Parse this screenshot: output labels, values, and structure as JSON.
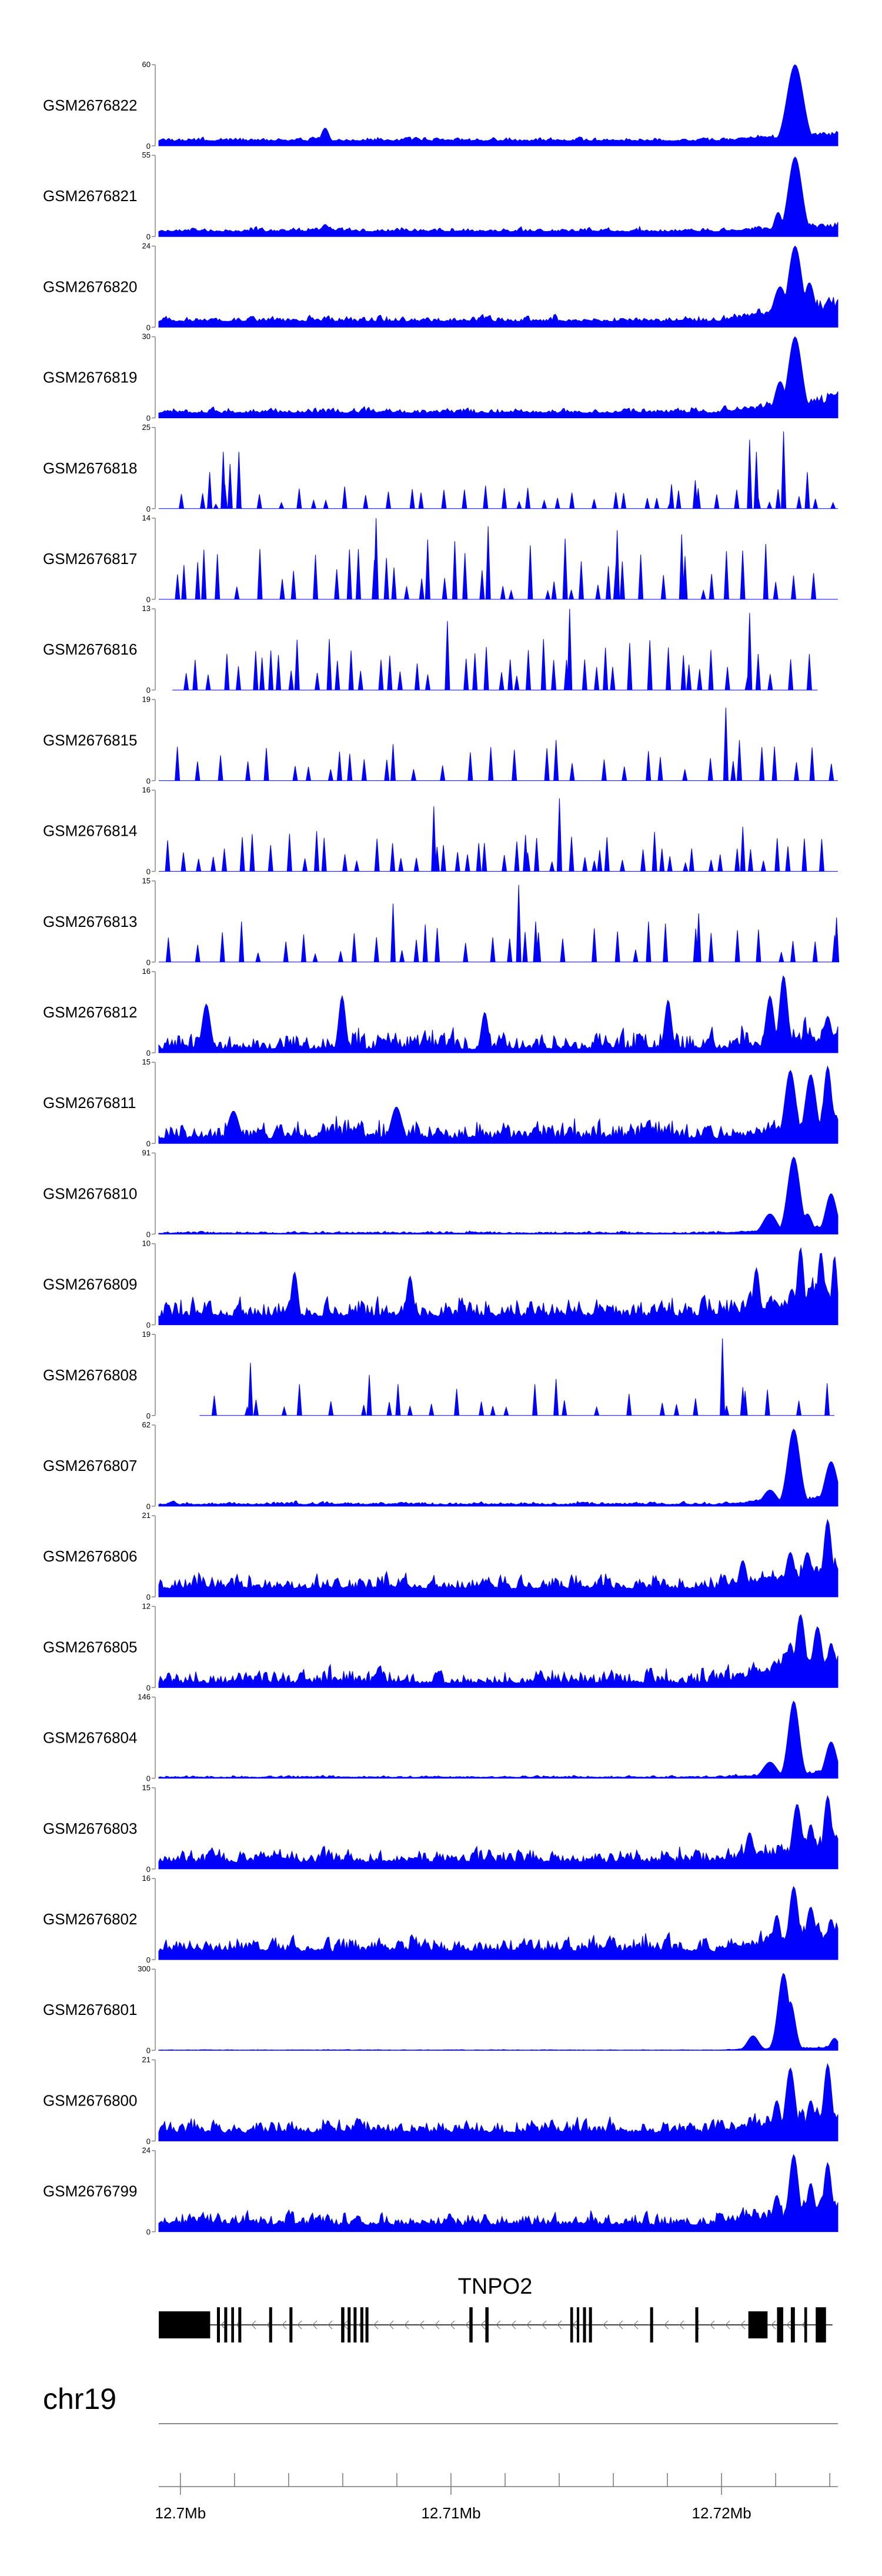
{
  "chart_data": {
    "type": "area",
    "title": "",
    "chromosome": "chr19",
    "x_range_mb": [
      12.6992,
      12.7243
    ],
    "axis_ticks_mb": [
      12.7,
      12.71,
      12.72
    ],
    "axis_tick_labels": [
      "12.7Mb",
      "12.71Mb",
      "12.72Mb"
    ],
    "track_color": "#0000FF",
    "tracks": [
      {
        "name": "GSM2676822",
        "ymax": 60,
        "ymax_label": "60",
        "ymin_label": "0",
        "profile": "dense",
        "seed": 1,
        "baseline": 0.06,
        "noise": 0.07,
        "ramp": 0.12,
        "peaks": [
          [
            0.937,
            1.0,
            0.012
          ],
          [
            0.245,
            0.22,
            0.006
          ],
          [
            0.44,
            0.1,
            0.005
          ]
        ]
      },
      {
        "name": "GSM2676821",
        "ymax": 55,
        "ymax_label": "55",
        "ymin_label": "0",
        "profile": "dense",
        "seed": 2,
        "baseline": 0.06,
        "noise": 0.08,
        "ramp": 0.1,
        "peaks": [
          [
            0.937,
            0.98,
            0.01
          ],
          [
            0.912,
            0.3,
            0.006
          ],
          [
            0.245,
            0.15,
            0.006
          ]
        ]
      },
      {
        "name": "GSM2676820",
        "ymax": 24,
        "ymax_label": "24",
        "ymin_label": "0",
        "profile": "dense",
        "seed": 3,
        "baseline": 0.07,
        "noise": 0.12,
        "ramp": 0.3,
        "peaks": [
          [
            0.937,
            1.0,
            0.01
          ],
          [
            0.958,
            0.55,
            0.008
          ],
          [
            0.915,
            0.5,
            0.01
          ],
          [
            0.99,
            0.3,
            0.008
          ]
        ]
      },
      {
        "name": "GSM2676819",
        "ymax": 30,
        "ymax_label": "30",
        "ymin_label": "0",
        "profile": "dense",
        "seed": 4,
        "baseline": 0.06,
        "noise": 0.11,
        "ramp": 0.25,
        "peaks": [
          [
            0.937,
            1.0,
            0.01
          ],
          [
            0.915,
            0.45,
            0.008
          ],
          [
            0.99,
            0.3,
            0.008
          ]
        ]
      },
      {
        "name": "GSM2676818",
        "ymax": 25,
        "ymax_label": "25",
        "ymin_label": "0",
        "profile": "sparse",
        "seed": 5,
        "count": 44,
        "lo": 0.05,
        "hi": 0.3,
        "peaks": [
          [
            0.075,
            0.45,
            0.004
          ],
          [
            0.095,
            0.7,
            0.004
          ],
          [
            0.105,
            0.55,
            0.004
          ],
          [
            0.118,
            0.7,
            0.004
          ],
          [
            0.755,
            0.3,
            0.004
          ],
          [
            0.79,
            0.35,
            0.004
          ],
          [
            0.87,
            0.85,
            0.004
          ],
          [
            0.88,
            0.7,
            0.004
          ],
          [
            0.92,
            0.95,
            0.004
          ],
          [
            0.955,
            0.45,
            0.004
          ]
        ]
      },
      {
        "name": "GSM2676817",
        "ymax": 14,
        "ymax_label": "14",
        "ymin_label": "0",
        "profile": "sparse",
        "seed": 6,
        "count": 46,
        "lo": 0.1,
        "hi": 0.75,
        "peaks": [
          [
            0.32,
            1.0,
            0.004
          ],
          [
            0.485,
            0.9,
            0.004
          ],
          [
            0.675,
            0.85,
            0.004
          ],
          [
            0.77,
            0.8,
            0.004
          ]
        ]
      },
      {
        "name": "GSM2676816",
        "ymax": 13,
        "ymax_label": "13",
        "ymin_label": "0",
        "profile": "sparse",
        "seed": 7,
        "count": 50,
        "lo": 0.15,
        "hi": 0.65,
        "range": [
          0.02,
          0.97
        ],
        "peaks": [
          [
            0.425,
            0.85,
            0.004
          ],
          [
            0.605,
            1.0,
            0.004
          ],
          [
            0.87,
            0.95,
            0.004
          ]
        ]
      },
      {
        "name": "GSM2676815",
        "ymax": 19,
        "ymax_label": "19",
        "ymin_label": "0",
        "profile": "sparse",
        "seed": 8,
        "count": 32,
        "lo": 0.1,
        "hi": 0.45,
        "peaks": [
          [
            0.345,
            0.45,
            0.004
          ],
          [
            0.585,
            0.5,
            0.004
          ],
          [
            0.835,
            0.9,
            0.004
          ],
          [
            0.855,
            0.5,
            0.004
          ]
        ]
      },
      {
        "name": "GSM2676814",
        "ymax": 16,
        "ymax_label": "16",
        "ymin_label": "0",
        "profile": "sparse",
        "seed": 9,
        "count": 52,
        "lo": 0.1,
        "hi": 0.5,
        "peaks": [
          [
            0.405,
            0.8,
            0.004
          ],
          [
            0.59,
            0.9,
            0.004
          ],
          [
            0.54,
            0.45,
            0.004
          ],
          [
            0.86,
            0.55,
            0.004
          ]
        ]
      },
      {
        "name": "GSM2676813",
        "ymax": 15,
        "ymax_label": "15",
        "ymin_label": "0",
        "profile": "sparse",
        "seed": 10,
        "count": 34,
        "lo": 0.1,
        "hi": 0.5,
        "peaks": [
          [
            0.345,
            0.72,
            0.004
          ],
          [
            0.53,
            0.95,
            0.004
          ],
          [
            0.555,
            0.5,
            0.004
          ],
          [
            0.795,
            0.6,
            0.004
          ],
          [
            0.998,
            0.55,
            0.003
          ]
        ]
      },
      {
        "name": "GSM2676812",
        "ymax": 16,
        "ymax_label": "16",
        "ymin_label": "0",
        "profile": "dense",
        "seed": 11,
        "baseline": 0.04,
        "noise": 0.4,
        "ramp": 0.2,
        "peaks": [
          [
            0.07,
            0.6,
            0.006
          ],
          [
            0.27,
            0.7,
            0.005
          ],
          [
            0.48,
            0.5,
            0.005
          ],
          [
            0.75,
            0.65,
            0.005
          ],
          [
            0.92,
            0.95,
            0.006
          ],
          [
            0.9,
            0.7,
            0.006
          ],
          [
            0.985,
            0.45,
            0.006
          ]
        ]
      },
      {
        "name": "GSM2676811",
        "ymax": 15,
        "ymax_label": "15",
        "ymin_label": "0",
        "profile": "dense",
        "seed": 12,
        "baseline": 0.06,
        "noise": 0.35,
        "ramp": 0.25,
        "peaks": [
          [
            0.93,
            0.9,
            0.008
          ],
          [
            0.96,
            0.85,
            0.008
          ],
          [
            0.985,
            0.95,
            0.006
          ],
          [
            0.35,
            0.45,
            0.008
          ],
          [
            0.11,
            0.4,
            0.008
          ]
        ]
      },
      {
        "name": "GSM2676810",
        "ymax": 91,
        "ymax_label": "91",
        "ymin_label": "0",
        "profile": "dense",
        "seed": 13,
        "baseline": 0.01,
        "noise": 0.04,
        "ramp": 0.1,
        "peaks": [
          [
            0.935,
            0.95,
            0.009
          ],
          [
            0.99,
            0.5,
            0.008
          ],
          [
            0.9,
            0.25,
            0.01
          ],
          [
            0.955,
            0.25,
            0.007
          ]
        ]
      },
      {
        "name": "GSM2676809",
        "ymax": 10,
        "ymax_label": "10",
        "ymin_label": "0",
        "profile": "dense",
        "seed": 14,
        "baseline": 0.1,
        "noise": 0.4,
        "ramp": 0.3,
        "peaks": [
          [
            0.2,
            0.65,
            0.005
          ],
          [
            0.37,
            0.6,
            0.005
          ],
          [
            0.88,
            0.7,
            0.005
          ],
          [
            0.945,
            0.95,
            0.005
          ],
          [
            0.975,
            0.9,
            0.005
          ],
          [
            0.995,
            0.85,
            0.004
          ]
        ]
      },
      {
        "name": "GSM2676808",
        "ymax": 19,
        "ymax_label": "19",
        "ymin_label": "0",
        "profile": "sparse",
        "seed": 15,
        "count": 30,
        "lo": 0.1,
        "hi": 0.4,
        "range": [
          0.06,
          0.995
        ],
        "peaks": [
          [
            0.135,
            0.65,
            0.004
          ],
          [
            0.31,
            0.5,
            0.004
          ],
          [
            0.585,
            0.45,
            0.004
          ],
          [
            0.83,
            0.95,
            0.004
          ],
          [
            0.86,
            0.35,
            0.004
          ]
        ]
      },
      {
        "name": "GSM2676807",
        "ymax": 62,
        "ymax_label": "62",
        "ymin_label": "0",
        "profile": "dense",
        "seed": 16,
        "baseline": 0.02,
        "noise": 0.06,
        "ramp": 0.12,
        "peaks": [
          [
            0.935,
            0.95,
            0.009
          ],
          [
            0.99,
            0.55,
            0.009
          ],
          [
            0.9,
            0.2,
            0.01
          ]
        ]
      },
      {
        "name": "GSM2676806",
        "ymax": 21,
        "ymax_label": "21",
        "ymin_label": "0",
        "profile": "dense",
        "seed": 17,
        "baseline": 0.1,
        "noise": 0.3,
        "ramp": 0.3,
        "peaks": [
          [
            0.985,
            0.95,
            0.006
          ],
          [
            0.955,
            0.55,
            0.007
          ],
          [
            0.93,
            0.55,
            0.007
          ],
          [
            0.86,
            0.45,
            0.006
          ]
        ]
      },
      {
        "name": "GSM2676805",
        "ymax": 12,
        "ymax_label": "12",
        "ymin_label": "0",
        "profile": "dense",
        "seed": 18,
        "baseline": 0.05,
        "noise": 0.3,
        "ramp": 0.35,
        "peaks": [
          [
            0.945,
            0.9,
            0.007
          ],
          [
            0.97,
            0.75,
            0.007
          ],
          [
            0.99,
            0.55,
            0.006
          ],
          [
            0.93,
            0.55,
            0.006
          ]
        ]
      },
      {
        "name": "GSM2676804",
        "ymax": 146,
        "ymax_label": "146",
        "ymin_label": "0",
        "profile": "dense",
        "seed": 19,
        "baseline": 0.01,
        "noise": 0.04,
        "ramp": 0.1,
        "peaks": [
          [
            0.935,
            0.95,
            0.008
          ],
          [
            0.99,
            0.45,
            0.008
          ],
          [
            0.9,
            0.2,
            0.01
          ]
        ]
      },
      {
        "name": "GSM2676803",
        "ymax": 15,
        "ymax_label": "15",
        "ymin_label": "0",
        "profile": "dense",
        "seed": 20,
        "baseline": 0.08,
        "noise": 0.3,
        "ramp": 0.3,
        "peaks": [
          [
            0.94,
            0.8,
            0.007
          ],
          [
            0.985,
            0.9,
            0.006
          ],
          [
            0.96,
            0.55,
            0.006
          ],
          [
            0.87,
            0.45,
            0.006
          ]
        ]
      },
      {
        "name": "GSM2676802",
        "ymax": 16,
        "ymax_label": "16",
        "ymin_label": "0",
        "profile": "dense",
        "seed": 21,
        "baseline": 0.1,
        "noise": 0.3,
        "ramp": 0.3,
        "peaks": [
          [
            0.935,
            0.9,
            0.007
          ],
          [
            0.96,
            0.65,
            0.007
          ],
          [
            0.99,
            0.5,
            0.006
          ],
          [
            0.91,
            0.55,
            0.006
          ]
        ]
      },
      {
        "name": "GSM2676801",
        "ymax": 300,
        "ymax_label": "300",
        "ymin_label": "0",
        "profile": "dense",
        "seed": 22,
        "baseline": 0.003,
        "noise": 0.01,
        "ramp": 0.05,
        "peaks": [
          [
            0.92,
            0.95,
            0.008
          ],
          [
            0.93,
            0.6,
            0.007
          ],
          [
            0.875,
            0.18,
            0.008
          ],
          [
            0.995,
            0.15,
            0.006
          ]
        ]
      },
      {
        "name": "GSM2676800",
        "ymax": 21,
        "ymax_label": "21",
        "ymin_label": "0",
        "profile": "dense",
        "seed": 23,
        "baseline": 0.1,
        "noise": 0.3,
        "ramp": 0.3,
        "peaks": [
          [
            0.93,
            0.9,
            0.007
          ],
          [
            0.985,
            0.95,
            0.006
          ],
          [
            0.96,
            0.5,
            0.006
          ],
          [
            0.91,
            0.5,
            0.006
          ]
        ]
      },
      {
        "name": "GSM2676799",
        "ymax": 24,
        "ymax_label": "24",
        "ymin_label": "0",
        "profile": "dense",
        "seed": 24,
        "baseline": 0.08,
        "noise": 0.25,
        "ramp": 0.3,
        "peaks": [
          [
            0.935,
            0.95,
            0.007
          ],
          [
            0.985,
            0.85,
            0.006
          ],
          [
            0.96,
            0.6,
            0.006
          ],
          [
            0.91,
            0.45,
            0.006
          ]
        ]
      }
    ],
    "gene": {
      "name": "TNPO2",
      "strand": "-",
      "start_mb": 12.6992,
      "end_mb": 12.7241,
      "exons_mb": [
        [
          12.6992,
          12.7011
        ],
        [
          12.70135,
          12.70146
        ],
        [
          12.70162,
          12.70173
        ],
        [
          12.70188,
          12.70198
        ],
        [
          12.70214,
          12.70225
        ],
        [
          12.70328,
          12.70339
        ],
        [
          12.70403,
          12.70414
        ],
        [
          12.70594,
          12.70606
        ],
        [
          12.70618,
          12.70629
        ],
        [
          12.7064,
          12.70651
        ],
        [
          12.70665,
          12.70676
        ],
        [
          12.70684,
          12.70695
        ],
        [
          12.71068,
          12.7108
        ],
        [
          12.71127,
          12.71139
        ],
        [
          12.71441,
          12.71451
        ],
        [
          12.71465,
          12.71474
        ],
        [
          12.71488,
          12.71499
        ],
        [
          12.7151,
          12.71521
        ],
        [
          12.71736,
          12.71747
        ],
        [
          12.71903,
          12.71914
        ],
        [
          12.72099,
          12.7217
        ],
        [
          12.72205,
          12.72228
        ],
        [
          12.72256,
          12.72271
        ],
        [
          12.72306,
          12.72316
        ],
        [
          12.72348,
          12.72386
        ]
      ]
    }
  }
}
